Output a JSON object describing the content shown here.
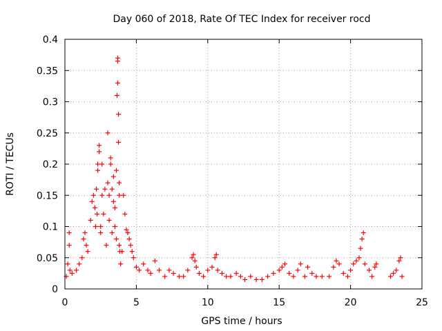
{
  "chart_data": {
    "type": "scatter",
    "title": "Day 060 of 2018, Rate Of TEC Index for receiver rocd",
    "xlabel": "GPS time / hours",
    "ylabel": "ROTI / TECUs",
    "xlim": [
      0,
      25
    ],
    "ylim": [
      0,
      0.4
    ],
    "x_ticks": [
      0,
      5,
      10,
      15,
      20,
      25
    ],
    "x_tick_labels": [
      "0",
      "5",
      "10",
      "15",
      "20",
      "25"
    ],
    "y_ticks": [
      0,
      0.05,
      0.1,
      0.15,
      0.2,
      0.25,
      0.3,
      0.35,
      0.4
    ],
    "y_tick_labels": [
      "0",
      "0.05",
      "0.1",
      "0.15",
      "0.2",
      "0.25",
      "0.3",
      "0.35",
      "0.4"
    ],
    "grid": true,
    "marker": "+",
    "marker_color": "#ff0000",
    "series": [
      {
        "name": "ROTI",
        "approximate": true,
        "x": [
          0.1,
          0.2,
          0.3,
          0.3,
          0.35,
          0.5,
          0.8,
          1.0,
          1.2,
          1.3,
          1.4,
          1.5,
          1.6,
          1.8,
          1.9,
          2.0,
          2.1,
          2.15,
          2.2,
          2.25,
          2.3,
          2.3,
          2.4,
          2.4,
          2.5,
          2.5,
          2.6,
          2.6,
          2.7,
          2.8,
          2.9,
          3.0,
          3.0,
          3.1,
          3.1,
          3.2,
          3.2,
          3.3,
          3.3,
          3.4,
          3.4,
          3.5,
          3.5,
          3.6,
          3.6,
          3.65,
          3.7,
          3.7,
          3.7,
          3.75,
          3.75,
          3.8,
          3.8,
          3.8,
          3.85,
          3.9,
          4.0,
          4.1,
          4.2,
          4.3,
          4.4,
          4.5,
          4.6,
          4.7,
          4.8,
          5.0,
          5.2,
          5.5,
          5.8,
          6.0,
          6.3,
          6.6,
          7.0,
          7.3,
          7.6,
          8.0,
          8.3,
          8.6,
          8.9,
          9.0,
          9.1,
          9.2,
          9.4,
          9.7,
          10.0,
          10.3,
          10.5,
          10.6,
          10.7,
          11.0,
          11.3,
          11.6,
          12.0,
          12.3,
          12.6,
          13.0,
          13.4,
          13.8,
          14.2,
          14.6,
          15.0,
          15.2,
          15.4,
          15.7,
          16.0,
          16.3,
          16.5,
          16.8,
          17.0,
          17.3,
          17.6,
          18.0,
          18.5,
          18.8,
          19.0,
          19.2,
          19.5,
          19.8,
          20.0,
          20.2,
          20.4,
          20.6,
          20.7,
          20.8,
          20.9,
          21.0,
          21.3,
          21.5,
          21.7,
          21.8,
          22.8,
          23.0,
          23.2,
          23.4,
          23.5,
          23.6
        ],
        "y": [
          0.02,
          0.04,
          0.07,
          0.09,
          0.03,
          0.025,
          0.03,
          0.04,
          0.05,
          0.08,
          0.09,
          0.07,
          0.06,
          0.11,
          0.14,
          0.15,
          0.13,
          0.1,
          0.16,
          0.12,
          0.2,
          0.19,
          0.22,
          0.23,
          0.09,
          0.1,
          0.2,
          0.15,
          0.12,
          0.16,
          0.07,
          0.25,
          0.17,
          0.11,
          0.15,
          0.2,
          0.21,
          0.16,
          0.09,
          0.14,
          0.18,
          0.13,
          0.1,
          0.19,
          0.08,
          0.31,
          0.37,
          0.365,
          0.33,
          0.28,
          0.235,
          0.07,
          0.15,
          0.17,
          0.06,
          0.04,
          0.06,
          0.15,
          0.12,
          0.095,
          0.09,
          0.08,
          0.07,
          0.06,
          0.05,
          0.035,
          0.03,
          0.04,
          0.03,
          0.025,
          0.045,
          0.03,
          0.02,
          0.03,
          0.025,
          0.02,
          0.02,
          0.03,
          0.05,
          0.055,
          0.045,
          0.035,
          0.025,
          0.02,
          0.03,
          0.035,
          0.05,
          0.055,
          0.03,
          0.025,
          0.02,
          0.02,
          0.025,
          0.02,
          0.015,
          0.02,
          0.015,
          0.015,
          0.02,
          0.025,
          0.03,
          0.035,
          0.04,
          0.025,
          0.02,
          0.03,
          0.04,
          0.02,
          0.035,
          0.025,
          0.02,
          0.02,
          0.02,
          0.035,
          0.045,
          0.04,
          0.025,
          0.02,
          0.03,
          0.04,
          0.045,
          0.05,
          0.065,
          0.08,
          0.09,
          0.04,
          0.03,
          0.02,
          0.035,
          0.04,
          0.02,
          0.025,
          0.03,
          0.045,
          0.05,
          0.02
        ]
      }
    ]
  }
}
